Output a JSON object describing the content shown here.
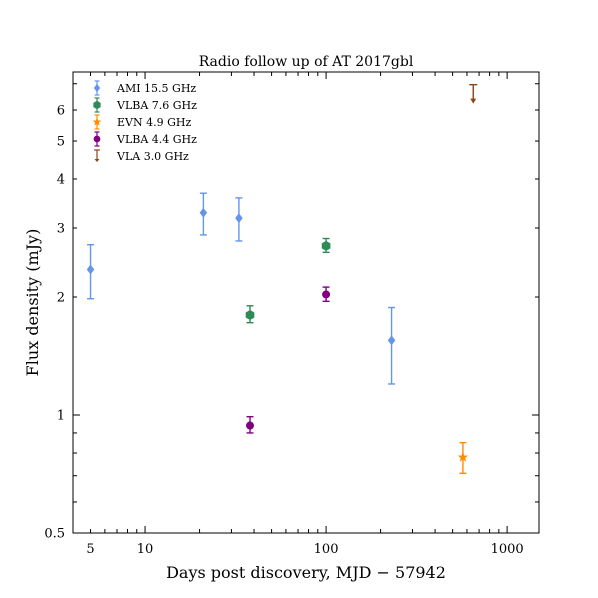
{
  "chart_data": {
    "type": "scatter",
    "title": "Radio follow up of AT 2017gbl",
    "xlabel": "Days post discovery, MJD − 57942",
    "ylabel": "Flux density (mJy)",
    "xscale": "log",
    "yscale": "log",
    "xlim": [
      4,
      1500
    ],
    "ylim": [
      0.5,
      7.5
    ],
    "xtick_labels": [
      {
        "value": 5,
        "label": "5"
      },
      {
        "value": 10,
        "label": "10"
      },
      {
        "value": 100,
        "label": "100"
      },
      {
        "value": 1000,
        "label": "1000"
      }
    ],
    "ytick_labels": [
      {
        "value": 0.5,
        "label": "0.5"
      },
      {
        "value": 1,
        "label": "1"
      },
      {
        "value": 2,
        "label": "2"
      },
      {
        "value": 3,
        "label": "3"
      },
      {
        "value": 4,
        "label": "4"
      },
      {
        "value": 5,
        "label": "5"
      },
      {
        "value": 6,
        "label": "6"
      }
    ],
    "legend_position": "top-left",
    "grid": false,
    "series": [
      {
        "name": "AMI 15.5 GHz",
        "color": "#6495ed",
        "marker": "diamond",
        "points": [
          {
            "x": 5,
            "y": 2.35,
            "ylo": 1.98,
            "yhi": 2.72
          },
          {
            "x": 21,
            "y": 3.28,
            "ylo": 2.88,
            "yhi": 3.68
          },
          {
            "x": 33,
            "y": 3.18,
            "ylo": 2.78,
            "yhi": 3.58
          },
          {
            "x": 230,
            "y": 1.55,
            "ylo": 1.2,
            "yhi": 1.88
          }
        ]
      },
      {
        "name": "VLBA 7.6 GHz",
        "color": "#2e8b57",
        "marker": "hexagon",
        "points": [
          {
            "x": 38,
            "y": 1.8,
            "ylo": 1.72,
            "yhi": 1.9
          },
          {
            "x": 100,
            "y": 2.7,
            "ylo": 2.6,
            "yhi": 2.82
          }
        ]
      },
      {
        "name": "EVN 4.9 GHz",
        "color": "#ff8c00",
        "marker": "star",
        "points": [
          {
            "x": 570,
            "y": 0.78,
            "ylo": 0.71,
            "yhi": 0.85
          }
        ]
      },
      {
        "name": "VLBA 4.4 GHz",
        "color": "#800080",
        "marker": "circle",
        "points": [
          {
            "x": 38,
            "y": 0.94,
            "ylo": 0.9,
            "yhi": 0.99
          },
          {
            "x": 100,
            "y": 2.03,
            "ylo": 1.95,
            "yhi": 2.12
          }
        ]
      },
      {
        "name": "VLA 3.0 GHz",
        "color": "#8b4513",
        "marker": "upper-limit",
        "points": [
          {
            "x": 650,
            "y": 6.3,
            "upper_limit": true
          }
        ]
      }
    ]
  }
}
